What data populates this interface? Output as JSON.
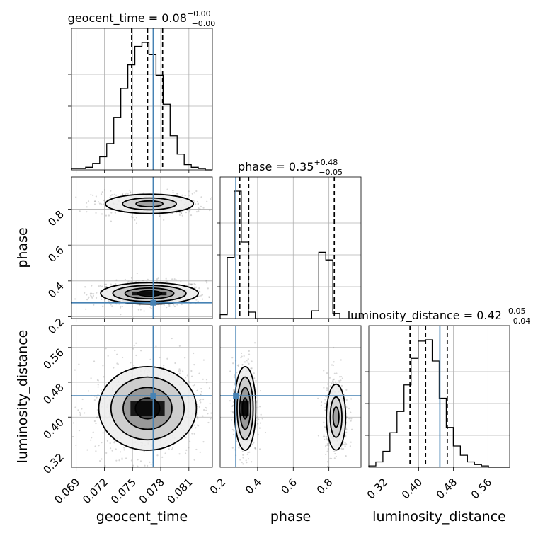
{
  "chart_data": {
    "type": "corner",
    "parameters": [
      "geocent_time",
      "phase",
      "luminosity_distance"
    ],
    "titles": {
      "geocent_time": {
        "prefix": "geocent_time = ",
        "median": "0.08",
        "plus": "+0.00",
        "minus": "−0.00"
      },
      "phase": {
        "prefix": "phase = ",
        "median": "0.35",
        "plus": "+0.48",
        "minus": "−0.05"
      },
      "luminosity_distance": {
        "prefix": "luminosity_distance = ",
        "median": "0.42",
        "plus": "+0.05",
        "minus": "−0.04"
      }
    },
    "axis_labels": {
      "geocent_time": "geocent_time",
      "phase": "phase",
      "luminosity_distance": "luminosity_distance"
    },
    "ranges": {
      "geocent_time": [
        0.0685,
        0.0835
      ],
      "phase": [
        0.19,
        0.98
      ],
      "luminosity_distance": [
        0.285,
        0.61
      ]
    },
    "ticks": {
      "geocent_time": [
        "0.069",
        "0.072",
        "0.075",
        "0.078",
        "0.081"
      ],
      "phase": [
        "0.2",
        "0.4",
        "0.6",
        "0.8"
      ],
      "luminosity_distance": [
        "0.32",
        "0.40",
        "0.48",
        "0.56"
      ]
    },
    "truths": {
      "geocent_time": 0.0772,
      "phase": 0.278,
      "luminosity_distance": 0.449
    },
    "quantiles": {
      "geocent_time": [
        0.0749,
        0.0766,
        0.0782
      ],
      "phase": [
        0.3,
        0.35,
        0.83
      ],
      "luminosity_distance": [
        0.38,
        0.416,
        0.466
      ]
    },
    "histograms": {
      "geocent_time": {
        "edges_start": 0.0685,
        "bin_width": 0.00075,
        "counts": [
          1,
          1,
          2,
          5,
          10,
          20,
          40,
          62,
          80,
          94,
          97,
          88,
          72,
          50,
          26,
          12,
          4,
          2,
          1,
          0
        ]
      },
      "phase": {
        "edges_start": 0.19,
        "bin_width": 0.0395,
        "counts": [
          3,
          48,
          100,
          60,
          5,
          0,
          0,
          0,
          0,
          0,
          0,
          0,
          0,
          6,
          52,
          46,
          4,
          0,
          0,
          0
        ]
      },
      "luminosity_distance": {
        "edges_start": 0.285,
        "bin_width": 0.01625,
        "counts": [
          1,
          4,
          12,
          26,
          42,
          62,
          82,
          95,
          96,
          80,
          52,
          30,
          16,
          9,
          4,
          2,
          1,
          0,
          0,
          0
        ]
      }
    },
    "grid": true
  }
}
